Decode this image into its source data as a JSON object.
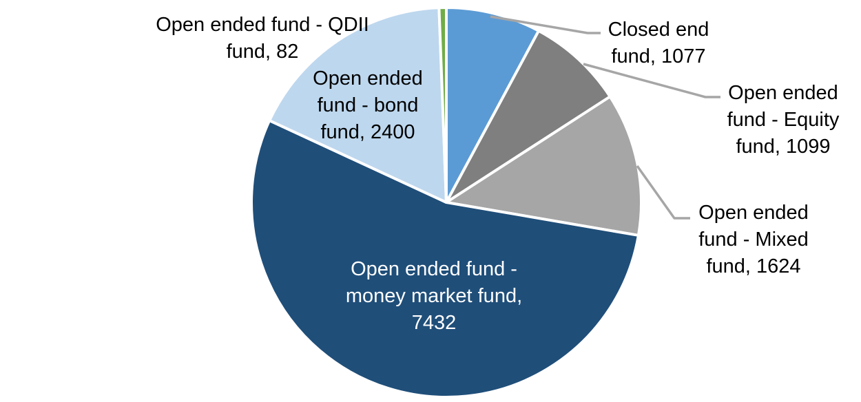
{
  "chart_data": {
    "type": "pie",
    "title": "",
    "total": 13714,
    "start_angle_deg": 0,
    "direction": "clockwise",
    "background": "#FFFFFF",
    "separator_color": "#FFFFFF",
    "leader_line_color": "#A6A6A6",
    "label_default_color": "#000000",
    "slices": [
      {
        "name": "Closed end fund",
        "value": 1077,
        "color": "#5B9BD5",
        "label_lines": [
          "Closed end",
          "fund, 1077"
        ],
        "label_color": "#000000",
        "has_leader_line": true
      },
      {
        "name": "Open ended fund - Equity fund",
        "value": 1099,
        "color": "#7F7F7F",
        "label_lines": [
          "Open ended",
          "fund - Equity",
          "fund, 1099"
        ],
        "label_color": "#000000",
        "has_leader_line": true
      },
      {
        "name": "Open ended fund - Mixed fund",
        "value": 1624,
        "color": "#A6A6A6",
        "label_lines": [
          "Open ended",
          "fund - Mixed",
          "fund, 1624"
        ],
        "label_color": "#000000",
        "has_leader_line": true
      },
      {
        "name": "Open ended fund - money market fund",
        "value": 7432,
        "color": "#1F4E79",
        "label_lines": [
          "Open ended fund -",
          "money market fund,",
          "7432"
        ],
        "label_color": "#FFFFFF",
        "has_leader_line": false
      },
      {
        "name": "Open ended fund - bond fund",
        "value": 2400,
        "color": "#BDD7EE",
        "label_lines": [
          "Open ended",
          "fund - bond",
          "fund, 2400"
        ],
        "label_color": "#000000",
        "has_leader_line": false
      },
      {
        "name": "Open ended fund - QDII fund",
        "value": 82,
        "color": "#70AD47",
        "label_lines": [
          "Open ended fund - QDII",
          "fund, 82"
        ],
        "label_color": "#000000",
        "has_leader_line": false
      }
    ]
  }
}
